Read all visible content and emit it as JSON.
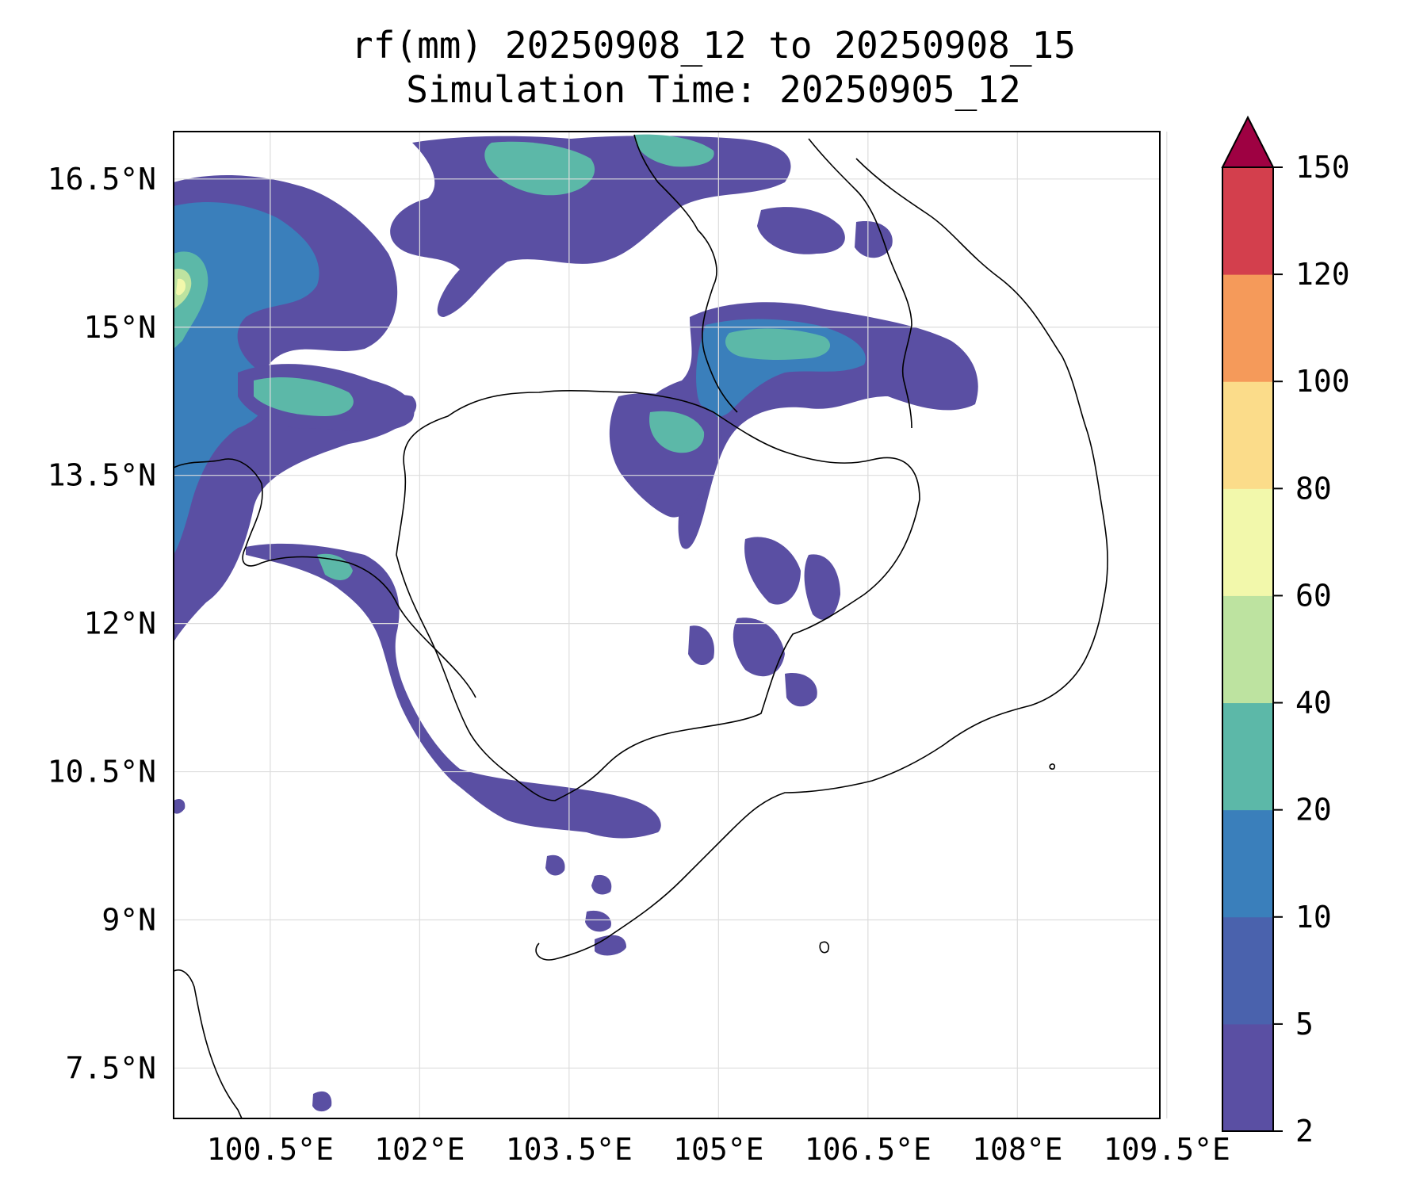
{
  "title": {
    "line1": "rf(mm) 20250908_12 to 20250908_15",
    "line2": "Simulation Time: 20250905_12"
  },
  "map": {
    "lon_ticks": [
      "100.5°E",
      "102°E",
      "103.5°E",
      "105°E",
      "106.5°E",
      "108°E",
      "109.5°E"
    ],
    "lat_ticks": [
      "16.5°N",
      "15°N",
      "13.5°N",
      "12°N",
      "10.5°N",
      "9°N",
      "7.5°N"
    ],
    "lon_values": [
      100.5,
      102,
      103.5,
      105,
      106.5,
      108,
      109.5
    ],
    "lat_values": [
      16.5,
      15,
      13.5,
      12,
      10.5,
      9,
      7.5
    ],
    "extent": {
      "lon_min": 99.53,
      "lon_max": 109.43,
      "lat_min": 6.99,
      "lat_max": 16.98
    },
    "grid": true
  },
  "colorbar": {
    "levels": [
      "2",
      "5",
      "10",
      "20",
      "40",
      "60",
      "80",
      "100",
      "120",
      "150"
    ],
    "colors": [
      "#5a4fa3",
      "#4a62ad",
      "#3a7fbb",
      "#5cb8a8",
      "#bde3a0",
      "#f2f8ab",
      "#fbdc8a",
      "#f59a5a",
      "#d33f4d",
      "#9e0142"
    ],
    "extend": "max"
  },
  "chart_data": {
    "type": "heatmap",
    "title": "rf(mm) 20250908_12 to 20250908_15",
    "subtitle": "Simulation Time: 20250905_12",
    "variable": "rf(mm)",
    "xlim": [
      99.53,
      109.43
    ],
    "ylim": [
      6.99,
      16.98
    ],
    "x_ticks": [
      100.5,
      102,
      103.5,
      105,
      106.5,
      108,
      109.5
    ],
    "y_ticks": [
      16.5,
      15,
      13.5,
      12,
      10.5,
      9,
      7.5
    ],
    "color_levels": [
      2,
      5,
      10,
      20,
      40,
      60,
      80,
      100,
      120,
      150
    ],
    "legend": "right colorbar"
  }
}
